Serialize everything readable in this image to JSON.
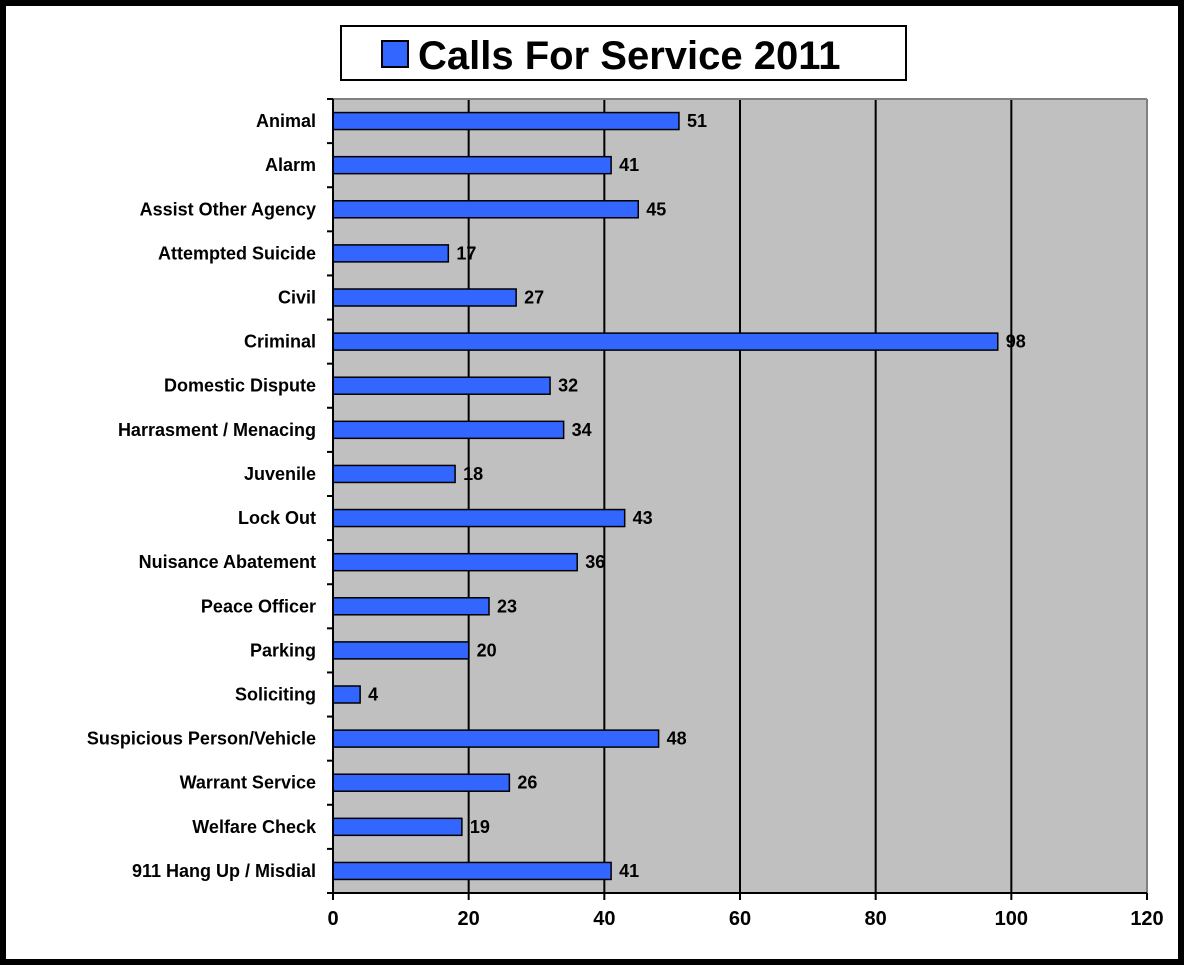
{
  "chart_data": {
    "type": "bar",
    "orientation": "horizontal",
    "title": "Calls For Service 2011",
    "legend": {
      "entry": "Calls For Service 2011",
      "placement": "top"
    },
    "categories": [
      "Animal",
      "Alarm",
      "Assist Other Agency",
      "Attempted Suicide",
      "Civil",
      "Criminal",
      "Domestic Dispute",
      "Harrasment / Menacing",
      "Juvenile",
      "Lock Out",
      "Nuisance Abatement",
      "Peace Officer",
      "Parking",
      "Soliciting",
      "Suspicious Person/Vehicle",
      "Warrant Service",
      "Welfare Check",
      "911 Hang Up / Misdial"
    ],
    "values": [
      51,
      41,
      45,
      17,
      27,
      98,
      32,
      34,
      18,
      43,
      36,
      23,
      20,
      4,
      48,
      26,
      19,
      41
    ],
    "xlim": [
      0,
      120
    ],
    "x_ticks": [
      0,
      20,
      40,
      60,
      80,
      100,
      120
    ],
    "grid": "vertical",
    "colors": {
      "bar": "#3366ff",
      "plot_background": "#c0c0c0",
      "border": "#000000"
    }
  }
}
